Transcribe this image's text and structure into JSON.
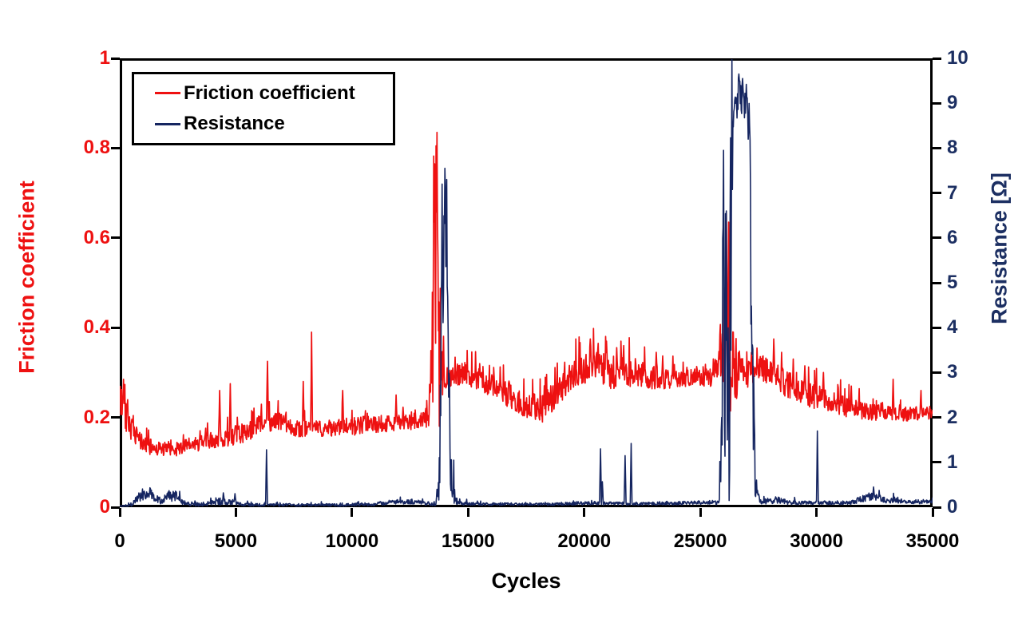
{
  "page": {
    "background": "#ffffff"
  },
  "chart_data": {
    "type": "line",
    "title": "",
    "xlabel": "Cycles",
    "ylabel_left": "Friction coefficient",
    "ylabel_right": "Resistance [Ω]",
    "xlim": [
      0,
      35000
    ],
    "ylim_left": [
      0,
      1
    ],
    "ylim_right": [
      0,
      10
    ],
    "x_ticks": [
      0,
      5000,
      10000,
      15000,
      20000,
      25000,
      30000,
      35000
    ],
    "y_ticks_left": [
      0,
      0.2,
      0.4,
      0.6,
      0.8,
      1
    ],
    "y_ticks_right": [
      0,
      1,
      2,
      3,
      4,
      5,
      6,
      7,
      8,
      9,
      10
    ],
    "grid": false,
    "legend_position": "top-left",
    "axis_color": "#000000",
    "series": [
      {
        "name": "Friction coefficient",
        "axis": "left",
        "color": "#ee1111",
        "floor": 0.02,
        "envelope": [
          [
            0,
            0.24,
            0.045
          ],
          [
            250,
            0.21,
            0.04
          ],
          [
            600,
            0.16,
            0.025
          ],
          [
            1200,
            0.135,
            0.018
          ],
          [
            2200,
            0.127,
            0.015
          ],
          [
            3200,
            0.14,
            0.018
          ],
          [
            4200,
            0.152,
            0.02
          ],
          [
            5200,
            0.163,
            0.022
          ],
          [
            6300,
            0.19,
            0.022
          ],
          [
            7000,
            0.19,
            0.02
          ],
          [
            7600,
            0.175,
            0.018
          ],
          [
            8800,
            0.175,
            0.018
          ],
          [
            10000,
            0.18,
            0.02
          ],
          [
            11000,
            0.185,
            0.02
          ],
          [
            12500,
            0.19,
            0.018
          ],
          [
            13300,
            0.195,
            0.02
          ],
          [
            13420,
            0.3,
            0.1
          ],
          [
            13500,
            0.48,
            0.3
          ],
          [
            13650,
            0.5,
            0.32
          ],
          [
            13780,
            0.4,
            0.25
          ],
          [
            13860,
            0.3,
            0.06
          ],
          [
            14000,
            0.285,
            0.025
          ],
          [
            14400,
            0.295,
            0.025
          ],
          [
            14800,
            0.3,
            0.025
          ],
          [
            15600,
            0.28,
            0.025
          ],
          [
            16600,
            0.255,
            0.028
          ],
          [
            17400,
            0.225,
            0.03
          ],
          [
            18200,
            0.22,
            0.032
          ],
          [
            18900,
            0.26,
            0.03
          ],
          [
            19600,
            0.3,
            0.032
          ],
          [
            20300,
            0.315,
            0.035
          ],
          [
            21200,
            0.3,
            0.038
          ],
          [
            22200,
            0.3,
            0.032
          ],
          [
            23200,
            0.285,
            0.026
          ],
          [
            24200,
            0.287,
            0.02
          ],
          [
            25300,
            0.29,
            0.02
          ],
          [
            25900,
            0.31,
            0.05
          ],
          [
            26100,
            0.38,
            0.2
          ],
          [
            26350,
            0.32,
            0.1
          ],
          [
            26700,
            0.3,
            0.05
          ],
          [
            27100,
            0.31,
            0.04
          ],
          [
            27500,
            0.315,
            0.028
          ],
          [
            28200,
            0.29,
            0.032
          ],
          [
            29000,
            0.265,
            0.03
          ],
          [
            30000,
            0.245,
            0.028
          ],
          [
            31000,
            0.228,
            0.024
          ],
          [
            32200,
            0.213,
            0.02
          ],
          [
            33500,
            0.207,
            0.016
          ],
          [
            35000,
            0.21,
            0.016
          ]
        ],
        "spikes": [
          [
            150,
            0.285
          ],
          [
            4300,
            0.26
          ],
          [
            4750,
            0.275
          ],
          [
            6350,
            0.325
          ],
          [
            7900,
            0.28
          ],
          [
            8250,
            0.39
          ],
          [
            9600,
            0.26
          ],
          [
            11900,
            0.25
          ],
          [
            13560,
            0.765
          ],
          [
            13660,
            0.835
          ],
          [
            20250,
            0.375
          ],
          [
            20600,
            0.365
          ],
          [
            20950,
            0.37
          ],
          [
            21700,
            0.36
          ],
          [
            23100,
            0.345
          ],
          [
            26120,
            0.655
          ],
          [
            26220,
            0.635
          ],
          [
            28150,
            0.375
          ],
          [
            28500,
            0.345
          ],
          [
            29000,
            0.33
          ],
          [
            29500,
            0.315
          ],
          [
            30300,
            0.3
          ],
          [
            31500,
            0.27
          ],
          [
            33300,
            0.285
          ],
          [
            34500,
            0.26
          ]
        ]
      },
      {
        "name": "Resistance",
        "axis": "right",
        "color": "#152560",
        "floor": 0.004,
        "envelope": [
          [
            0,
            0.02,
            0.015
          ],
          [
            500,
            0.06,
            0.04
          ],
          [
            900,
            0.28,
            0.14
          ],
          [
            1300,
            0.33,
            0.13
          ],
          [
            1700,
            0.15,
            0.09
          ],
          [
            2000,
            0.25,
            0.13
          ],
          [
            2400,
            0.24,
            0.12
          ],
          [
            2800,
            0.1,
            0.06
          ],
          [
            3400,
            0.06,
            0.04
          ],
          [
            4200,
            0.11,
            0.06
          ],
          [
            4800,
            0.12,
            0.07
          ],
          [
            5300,
            0.06,
            0.035
          ],
          [
            6200,
            0.05,
            0.03
          ],
          [
            8000,
            0.05,
            0.03
          ],
          [
            9500,
            0.05,
            0.03
          ],
          [
            11000,
            0.07,
            0.04
          ],
          [
            11800,
            0.12,
            0.05
          ],
          [
            12800,
            0.12,
            0.05
          ],
          [
            13300,
            0.08,
            0.04
          ],
          [
            13600,
            0.06,
            0.03
          ],
          [
            13780,
            0.8,
            0.7
          ],
          [
            13850,
            4.5,
            2.4
          ],
          [
            13950,
            5.8,
            1.8
          ],
          [
            14050,
            5.6,
            2.0
          ],
          [
            14150,
            3.2,
            2.0
          ],
          [
            14280,
            0.9,
            0.7
          ],
          [
            14420,
            0.25,
            0.18
          ],
          [
            14550,
            0.1,
            0.05
          ],
          [
            15500,
            0.07,
            0.03
          ],
          [
            17000,
            0.07,
            0.03
          ],
          [
            18500,
            0.07,
            0.03
          ],
          [
            19800,
            0.09,
            0.04
          ],
          [
            20600,
            0.09,
            0.04
          ],
          [
            21500,
            0.08,
            0.035
          ],
          [
            22500,
            0.08,
            0.035
          ],
          [
            23500,
            0.09,
            0.04
          ],
          [
            24500,
            0.1,
            0.04
          ],
          [
            25400,
            0.11,
            0.045
          ],
          [
            25800,
            0.1,
            0.05
          ],
          [
            25960,
            2.0,
            1.9
          ],
          [
            26060,
            4.0,
            3.0
          ],
          [
            26180,
            2.5,
            2.2
          ],
          [
            26300,
            5.0,
            3.5
          ],
          [
            26420,
            9.0,
            0.55
          ],
          [
            26700,
            9.25,
            0.42
          ],
          [
            26950,
            9.0,
            0.45
          ],
          [
            27100,
            8.6,
            0.7
          ],
          [
            27220,
            4.0,
            2.5
          ],
          [
            27330,
            1.0,
            0.8
          ],
          [
            27450,
            0.25,
            0.15
          ],
          [
            27600,
            0.12,
            0.05
          ],
          [
            28300,
            0.16,
            0.08
          ],
          [
            28700,
            0.12,
            0.06
          ],
          [
            29500,
            0.1,
            0.04
          ],
          [
            30200,
            0.1,
            0.04
          ],
          [
            31500,
            0.1,
            0.04
          ],
          [
            32300,
            0.25,
            0.1
          ],
          [
            32700,
            0.22,
            0.1
          ],
          [
            33100,
            0.12,
            0.05
          ],
          [
            33400,
            0.17,
            0.07
          ],
          [
            33800,
            0.12,
            0.05
          ],
          [
            35000,
            0.12,
            0.04
          ]
        ],
        "spikes": [
          [
            4450,
            0.32
          ],
          [
            4950,
            0.3
          ],
          [
            6310,
            1.28
          ],
          [
            13880,
            7.2
          ],
          [
            13990,
            7.55
          ],
          [
            14070,
            7.3
          ],
          [
            20700,
            1.3
          ],
          [
            20780,
            0.57
          ],
          [
            21760,
            1.15
          ],
          [
            22010,
            1.42
          ],
          [
            25990,
            7.95
          ],
          [
            26120,
            6.6
          ],
          [
            26240,
            0.15
          ],
          [
            26650,
            9.65
          ],
          [
            26820,
            9.55
          ],
          [
            30030,
            1.7
          ],
          [
            32450,
            0.45
          ]
        ]
      }
    ]
  }
}
